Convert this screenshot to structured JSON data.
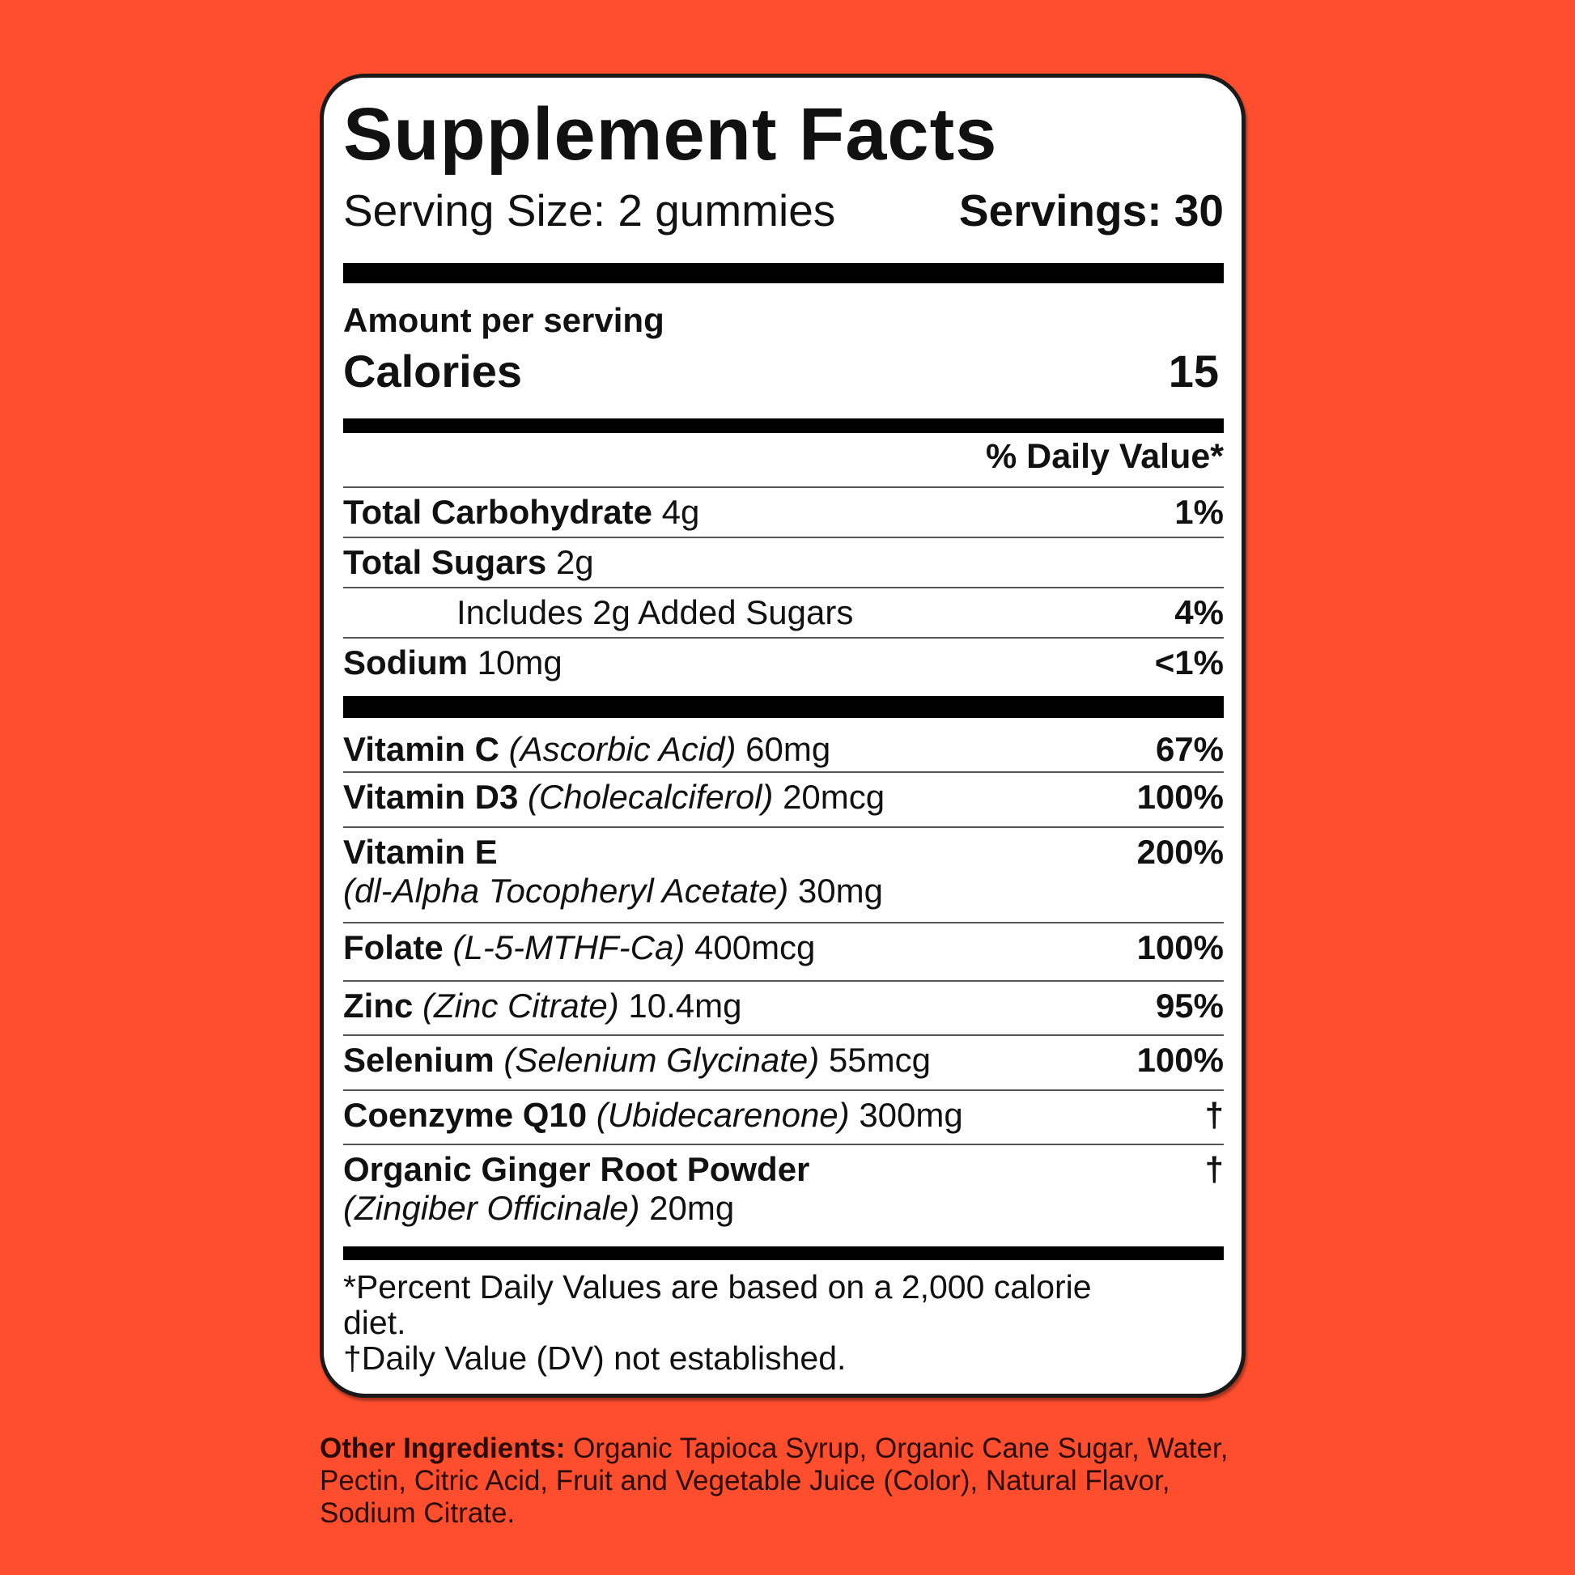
{
  "colors": {
    "background": "#ff4e2e",
    "card": "#ffffff",
    "text": "#111111"
  },
  "title": "Supplement Facts",
  "serving_size": "Serving Size: 2 gummies",
  "servings": "Servings: 30",
  "amount_per_serving": "Amount per serving",
  "calories_label": "Calories",
  "calories_value": "15",
  "dv_header": "% Daily Value*",
  "nutrients": [
    {
      "name": "Total Carbohydrate",
      "form": "",
      "amount": "4g",
      "dv": "1%"
    },
    {
      "name": "Total Sugars",
      "form": "",
      "amount": "2g",
      "dv": ""
    },
    {
      "name": "",
      "form": "",
      "amount": "Includes 2g Added Sugars",
      "dv": "4%"
    },
    {
      "name": "Sodium",
      "form": "",
      "amount": "10mg",
      "dv": "<1%"
    }
  ],
  "vitamins": [
    {
      "name": "Vitamin C",
      "form": "(Ascorbic Acid)",
      "amount": "60mg",
      "dv": "67%"
    },
    {
      "name": "Vitamin D3",
      "form": "(Cholecalciferol)",
      "amount": "20mcg",
      "dv": "100%"
    },
    {
      "name": "Vitamin E",
      "form": "(dl-Alpha Tocopheryl Acetate)",
      "amount": "30mg",
      "dv": "200%"
    },
    {
      "name": "Folate",
      "form": "(L-5-MTHF-Ca)",
      "amount": "400mcg",
      "dv": "100%"
    },
    {
      "name": "Zinc",
      "form": "(Zinc Citrate)",
      "amount": "10.4mg",
      "dv": "95%"
    },
    {
      "name": "Selenium",
      "form": "(Selenium Glycinate)",
      "amount": "55mcg",
      "dv": "100%"
    },
    {
      "name": "Coenzyme Q10",
      "form": "(Ubidecarenone)",
      "amount": "300mg",
      "dv": "†"
    },
    {
      "name": "Organic Ginger Root Powder",
      "form": "(Zingiber Officinale)",
      "amount": "20mg",
      "dv": "†"
    }
  ],
  "footnote_1": "*Percent Daily Values are based on a 2,000 calorie diet.",
  "footnote_2": "†Daily Value (DV) not established.",
  "other_ingredients_label": "Other Ingredients:",
  "other_ingredients": "Organic Tapioca Syrup, Organic Cane Sugar, Water, Pectin, Citric Acid, Fruit and Vegetable Juice (Color), Natural Flavor, Sodium Citrate."
}
